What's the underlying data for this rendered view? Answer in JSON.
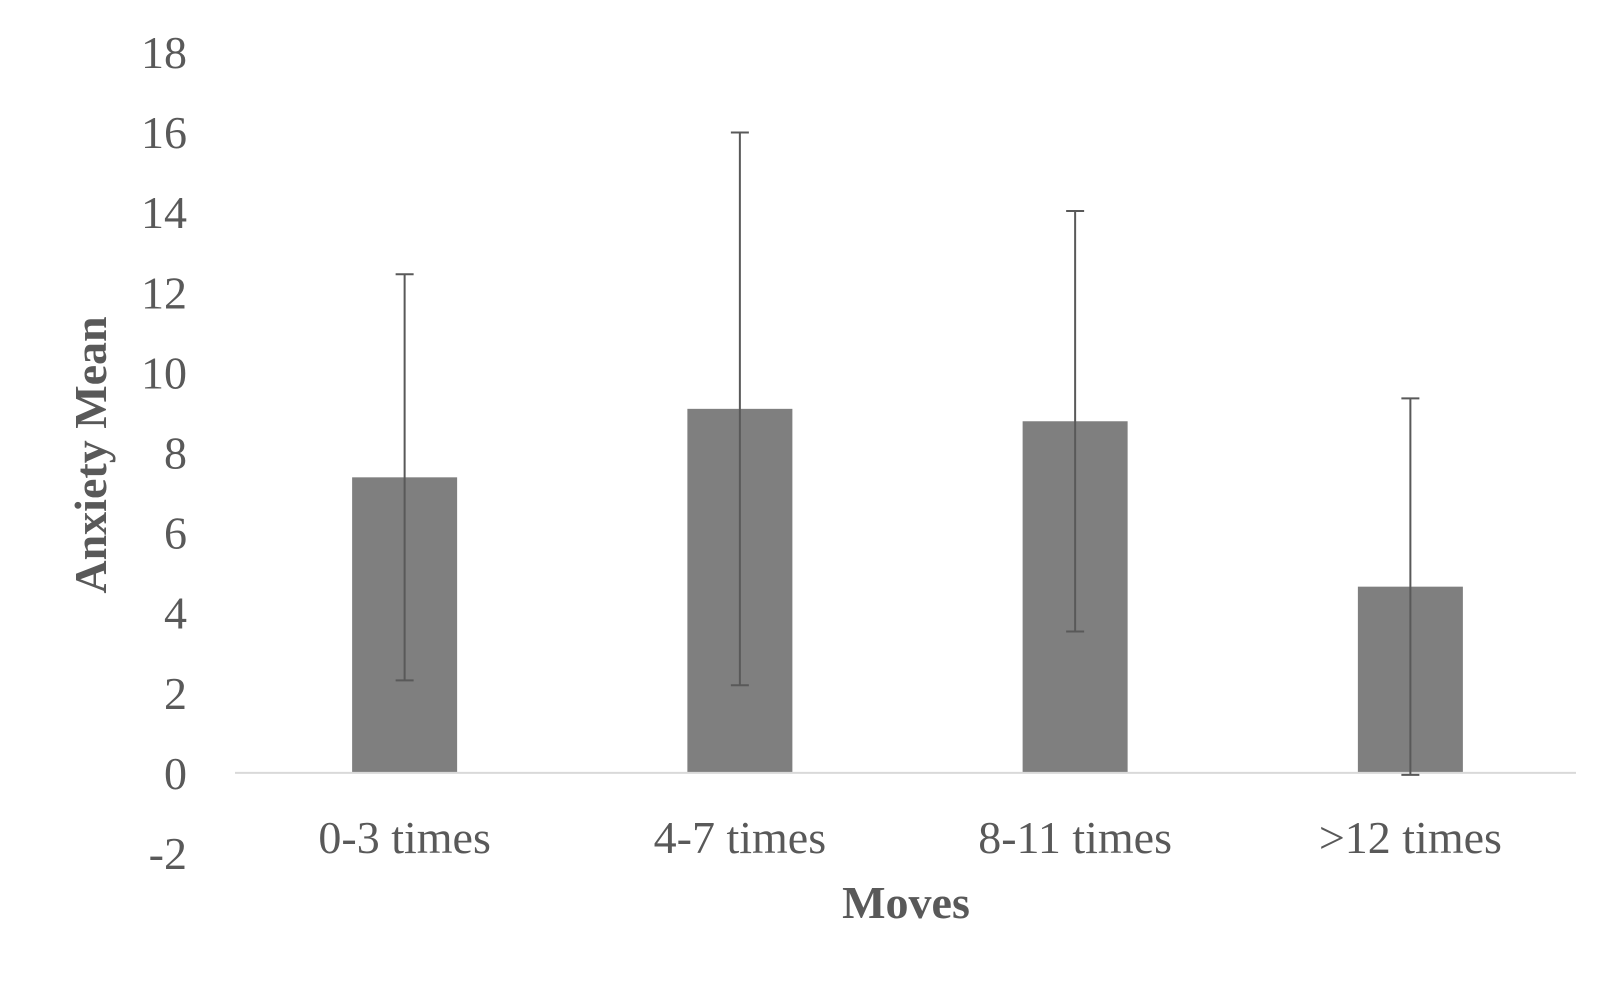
{
  "chart_data": {
    "type": "bar",
    "title": "",
    "xlabel": "Moves",
    "ylabel": "Anxiety Mean",
    "categories": [
      "0-3 times",
      "4-7 times",
      "8-11 times",
      ">12 times"
    ],
    "values": [
      7.38,
      9.09,
      8.78,
      4.65
    ],
    "error": [
      5.07,
      6.9,
      5.25,
      4.7
    ],
    "ylim": [
      -2,
      18
    ],
    "yticks": [
      "-2",
      "0",
      "2",
      "4",
      "6",
      "8",
      "10",
      "12",
      "14",
      "16",
      "18"
    ],
    "grid": false,
    "legend": "none",
    "colors": {
      "bar": "#7f7f7f",
      "error_bar": "#595959",
      "axis": "#d9d9d9",
      "text": "#595959"
    }
  }
}
